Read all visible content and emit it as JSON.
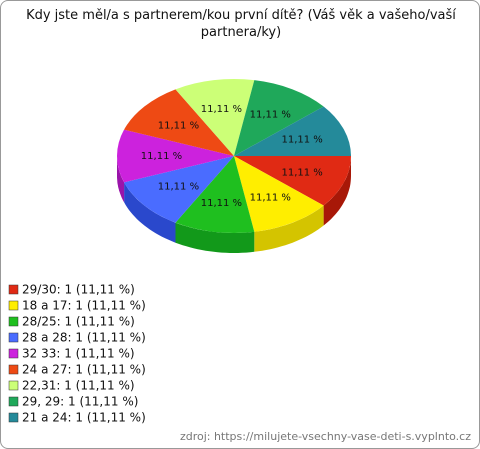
{
  "chart_data": {
    "type": "pie",
    "title": "Kdy jste měl/a s partnerem/kou první dítě? (Váš věk a vašeho/vaší partnera/ky)",
    "categories": [
      "29/30: 1 (11,11 %)",
      "18 a 17: 1 (11,11 %)",
      "28/25: 1 (11,11 %)",
      "28 a 28: 1 (11,11 %)",
      "32 33: 1 (11,11 %)",
      "24 a 27: 1 (11,11 %)",
      "22,31: 1 (11,11 %)",
      "29, 29: 1 (11,11 %)",
      "21 a 24: 1 (11,11 %)"
    ],
    "values": [
      11.11,
      11.11,
      11.11,
      11.11,
      11.11,
      11.11,
      11.11,
      11.11,
      11.11
    ],
    "value_labels": [
      "11,11 %",
      "11,11 %",
      "11,11 %",
      "11,11 %",
      "11,11 %",
      "11,11 %",
      "11,11 %",
      "11,11 %",
      "11,11 %"
    ],
    "colors": [
      "#e02a14",
      "#ffee00",
      "#1fbf1f",
      "#4a6cff",
      "#cc22dd",
      "#ee4a14",
      "#ccff77",
      "#1fa85a",
      "#248a9a"
    ],
    "side_colors": [
      "#a81808",
      "#d4c400",
      "#12991a",
      "#2a48cc",
      "#9a14aa",
      "#b83408",
      "#a8d455",
      "#12844a",
      "#146a78"
    ],
    "source": "zdroj: https://milujete-vsechny-vase-deti-s.vyplnto.cz"
  }
}
